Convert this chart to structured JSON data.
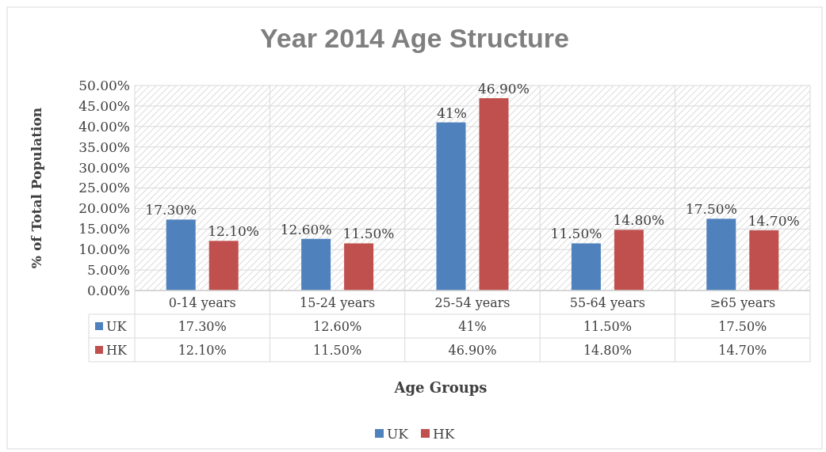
{
  "chart_data": {
    "type": "bar",
    "title": "Year 2014 Age Structure",
    "xlabel": "Age Groups",
    "ylabel": "% of Total Population",
    "categories": [
      "0-14 years",
      "15-24 years",
      "25-54 years",
      "55-64 years",
      "≥65 years"
    ],
    "series": [
      {
        "name": "UK",
        "color": "#4f81bd",
        "values": [
          17.3,
          12.6,
          41,
          11.5,
          17.5
        ],
        "value_labels": [
          "17.30%",
          "12.60%",
          "41%",
          "11.50%",
          "17.50%"
        ]
      },
      {
        "name": "HK",
        "color": "#c0504d",
        "values": [
          12.1,
          11.5,
          46.9,
          14.8,
          14.7
        ],
        "value_labels": [
          "12.10%",
          "11.50%",
          "46.90%",
          "14.80%",
          "14.70%"
        ]
      }
    ],
    "ylim": [
      0,
      50
    ],
    "yticks": [
      {
        "value": 0,
        "label": "0.00%"
      },
      {
        "value": 5,
        "label": "5.00%"
      },
      {
        "value": 10,
        "label": "10.00%"
      },
      {
        "value": 15,
        "label": "15.00%"
      },
      {
        "value": 20,
        "label": "20.00%"
      },
      {
        "value": 25,
        "label": "25.00%"
      },
      {
        "value": 30,
        "label": "30.00%"
      },
      {
        "value": 35,
        "label": "35.00%"
      },
      {
        "value": 40,
        "label": "40.00%"
      },
      {
        "value": 45,
        "label": "45.00%"
      },
      {
        "value": 50,
        "label": "50.00%"
      }
    ],
    "grid": "y",
    "legend": "bottom"
  }
}
